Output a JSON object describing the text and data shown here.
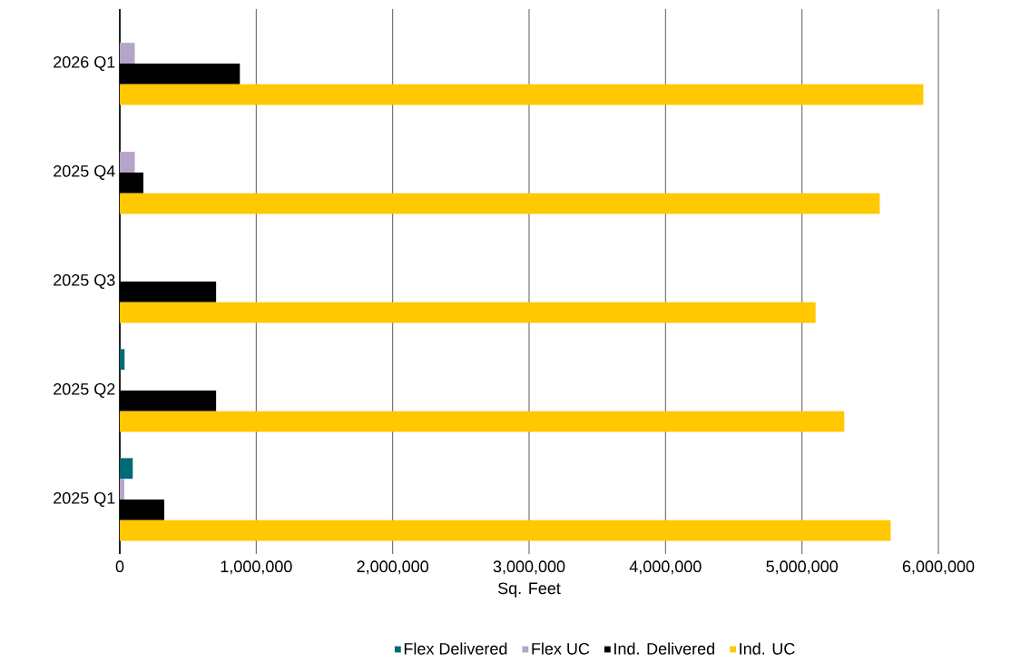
{
  "chart_data": {
    "type": "bar",
    "orientation": "horizontal",
    "xlabel": "Sq. Feet",
    "categories": [
      "2026 Q1",
      "2025 Q4",
      "2025 Q3",
      "2025 Q2",
      "2025 Q1"
    ],
    "series": [
      {
        "name": "Flex Delivered",
        "color": "#006a75",
        "values": [
          null,
          null,
          null,
          35000,
          95000
        ]
      },
      {
        "name": "Flex UC",
        "color": "#b5a4c8",
        "values": [
          110000,
          110000,
          null,
          null,
          33000
        ]
      },
      {
        "name": "Ind. Delivered",
        "color": "#000000",
        "values": [
          880000,
          173000,
          706000,
          706000,
          326000
        ]
      },
      {
        "name": "Ind. UC",
        "color": "#ffc800",
        "values": [
          5890000,
          5570000,
          5100000,
          5310000,
          5650000
        ]
      }
    ],
    "xlim": [
      0,
      6000000
    ],
    "xticks": [
      0,
      {
        "value": 1000000,
        "label": "1,000,000"
      },
      {
        "value": 2000000,
        "label": "2,000,000"
      },
      {
        "value": 3000000,
        "label": "3,000,000"
      },
      {
        "value": 4000000,
        "label": "4,000,000"
      },
      {
        "value": 5000000,
        "label": "5,000,000"
      },
      {
        "value": 6000000,
        "label": "6,000,000"
      }
    ],
    "grid": "x",
    "legend": "bottom"
  }
}
